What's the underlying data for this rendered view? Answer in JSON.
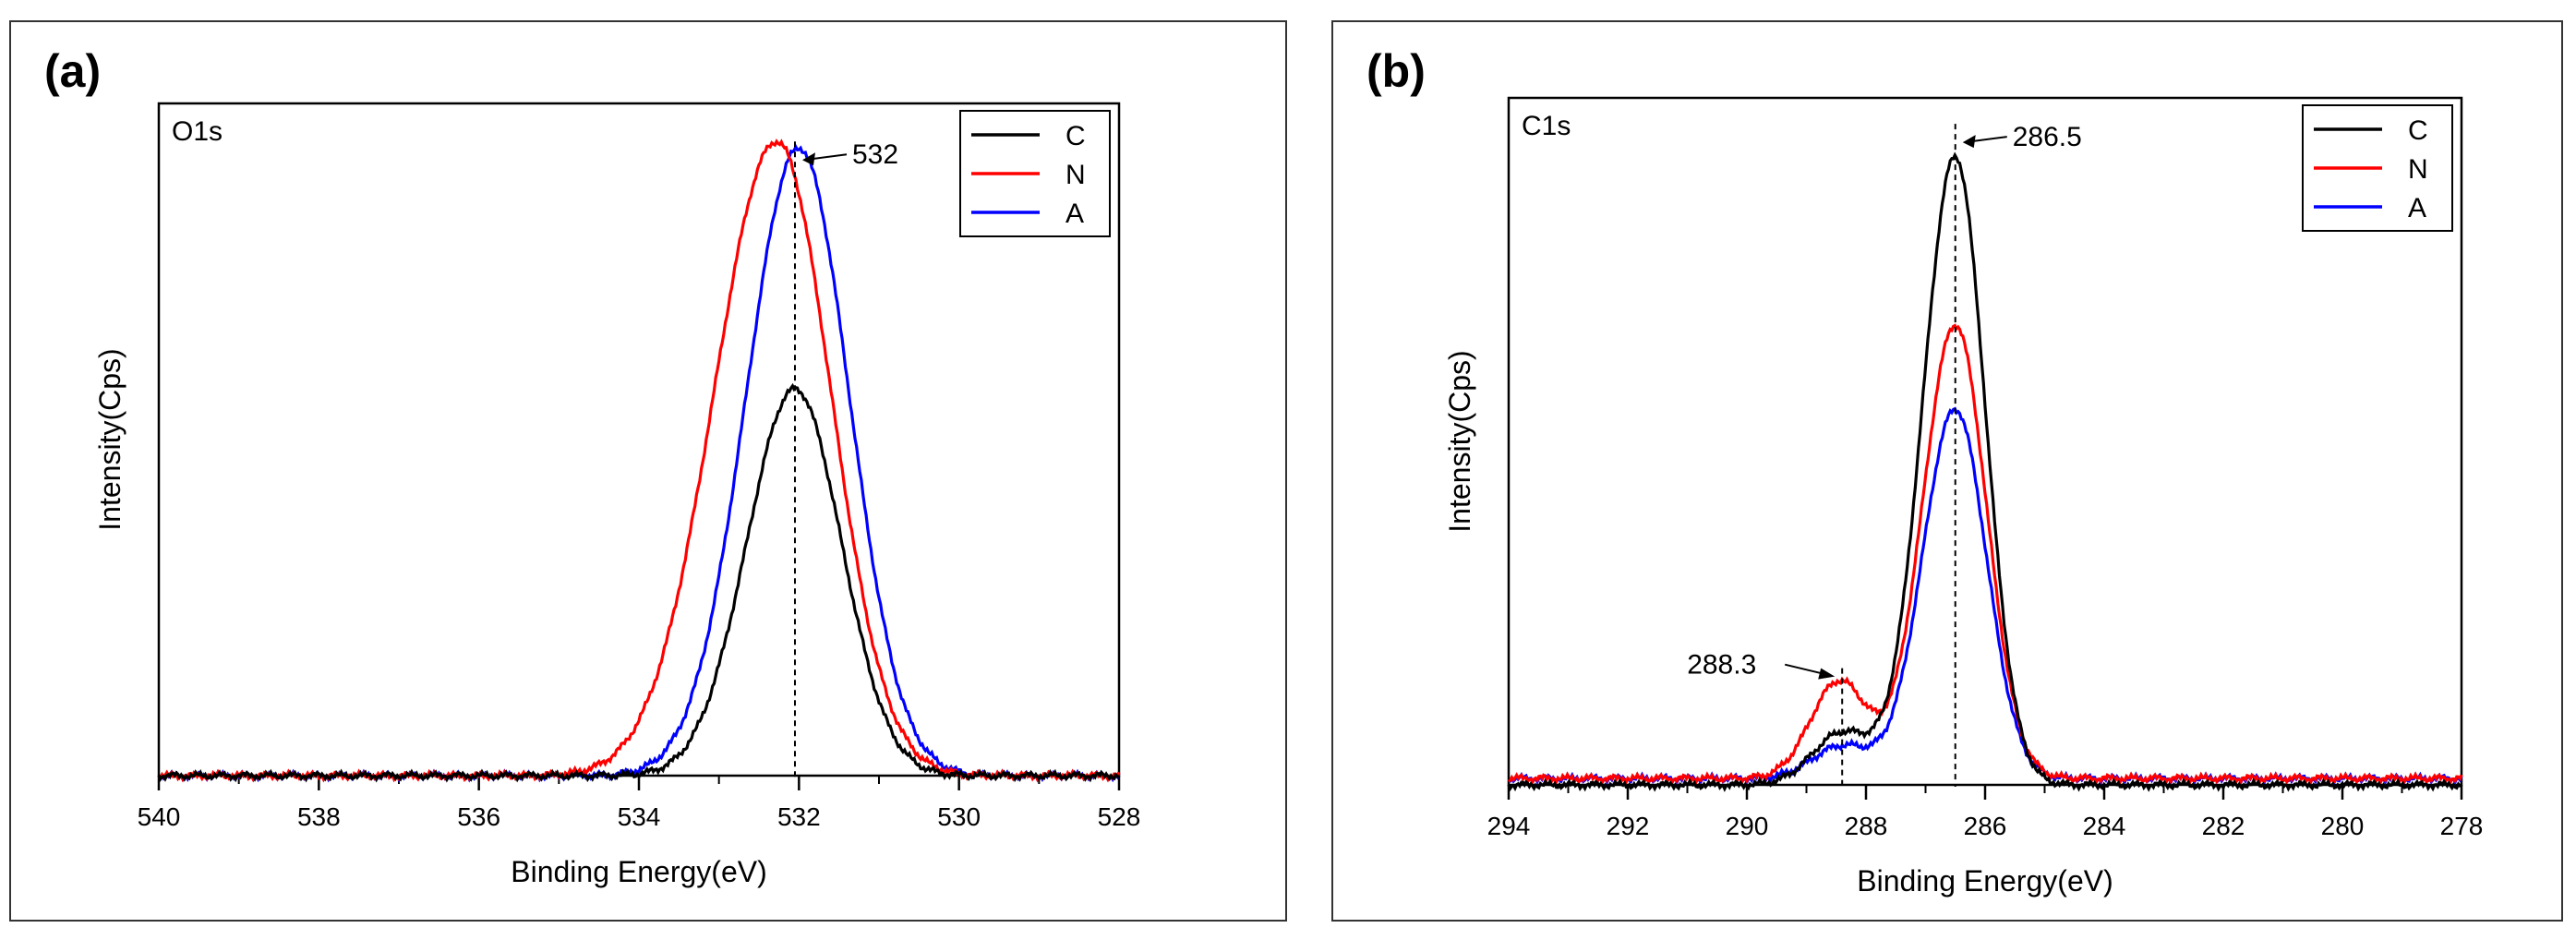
{
  "chart_data": [
    {
      "type": "line",
      "panel_label": "(a)",
      "peak_label": "O1s",
      "xlabel": "Binding Energy(eV)",
      "ylabel": "Intensity(Cps)",
      "xlim": [
        540,
        528
      ],
      "x_reversed": true,
      "ylim": [
        0,
        1.06
      ],
      "xticks": [
        540,
        538,
        536,
        534,
        532,
        530,
        528
      ],
      "tick_labels": [
        "540",
        "538",
        "536",
        "534",
        "532",
        "530",
        "528"
      ],
      "legend_position": "top-right",
      "colors": {
        "C": "#000000",
        "N": "#ff0000",
        "A": "#0000ff"
      },
      "annotations": [
        {
          "text": "532",
          "x": 532.05,
          "y": 1.0,
          "dashed_line": true,
          "arrow": true
        }
      ],
      "series": [
        {
          "name": "C",
          "center": 532.05,
          "height": 0.61,
          "width_left": 0.6,
          "width_right": 0.58,
          "baseline": 0.0,
          "shoulder": null
        },
        {
          "name": "N",
          "center": 532.28,
          "height": 1.0,
          "width_left": 0.78,
          "width_right": 0.68,
          "baseline": 0.0,
          "shoulder": null
        },
        {
          "name": "A",
          "center": 532.0,
          "height": 0.99,
          "width_left": 0.66,
          "width_right": 0.63,
          "baseline": 0.0,
          "shoulder": null
        }
      ]
    },
    {
      "type": "line",
      "panel_label": "(b)",
      "peak_label": "C1s",
      "xlabel": "Binding Energy(eV)",
      "ylabel": "Intensity(Cps)",
      "xlim": [
        294,
        278
      ],
      "x_reversed": true,
      "ylim": [
        0,
        1.06
      ],
      "xticks": [
        294,
        292,
        290,
        288,
        286,
        284,
        282,
        280,
        278
      ],
      "tick_labels": [
        "294",
        "292",
        "290",
        "288",
        "286",
        "284",
        "282",
        "280",
        "278"
      ],
      "legend_position": "top-right",
      "colors": {
        "C": "#000000",
        "N": "#ff0000",
        "A": "#0000ff"
      },
      "annotations": [
        {
          "text": "286.5",
          "x": 286.5,
          "y": 1.02,
          "dashed_line": true,
          "arrow": true
        },
        {
          "text": "288.3",
          "x": 288.4,
          "y": 0.18,
          "dashed_line": true,
          "arrow": true
        }
      ],
      "series": [
        {
          "name": "C",
          "center": 286.5,
          "height": 0.97,
          "width_left": 0.55,
          "width_right": 0.5,
          "baseline": 0.0,
          "shoulder": {
            "center": 288.4,
            "height": 0.08,
            "width": 0.5
          }
        },
        {
          "name": "N",
          "center": 286.5,
          "height": 0.7,
          "width_left": 0.55,
          "width_right": 0.52,
          "baseline": 0.01,
          "shoulder": {
            "center": 288.45,
            "height": 0.15,
            "width": 0.48
          }
        },
        {
          "name": "A",
          "center": 286.5,
          "height": 0.57,
          "width_left": 0.55,
          "width_right": 0.52,
          "baseline": 0.01,
          "shoulder": {
            "center": 288.4,
            "height": 0.05,
            "width": 0.5
          }
        }
      ]
    }
  ]
}
